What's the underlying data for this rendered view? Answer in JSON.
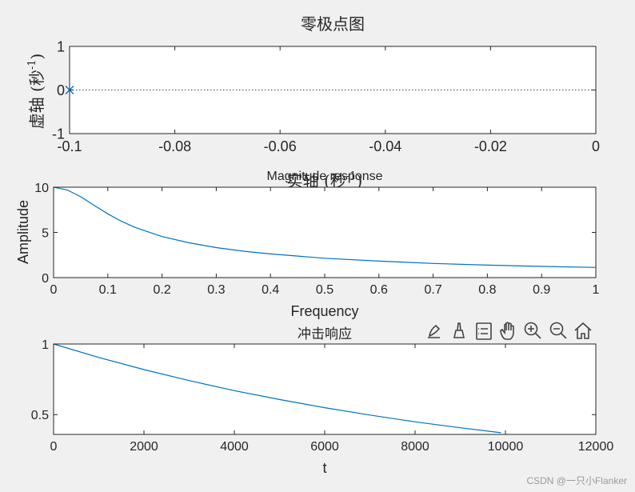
{
  "chart_data": [
    {
      "type": "scatter",
      "title": "零极点图",
      "xlabel": "实轴 (秒",
      "xlabel_sup": "-1",
      "xlabel_close": ")",
      "ylabel": "虚轴 (秒",
      "ylabel_sup": "-1",
      "ylabel_close": ")",
      "xlim": [
        -0.1,
        0
      ],
      "ylim": [
        -1,
        1
      ],
      "xticks": [
        -0.1,
        -0.08,
        -0.06,
        -0.04,
        -0.02,
        0
      ],
      "xtick_labels": [
        "-0.1",
        "-0.08",
        "-0.06",
        "-0.04",
        "-0.02",
        "0"
      ],
      "yticks": [
        -1,
        0,
        1
      ],
      "ytick_labels": [
        "-1",
        "0",
        "1"
      ],
      "poles": [
        {
          "x": -0.1,
          "y": 0
        }
      ],
      "zero_line": {
        "y": 0,
        "style": "dotted"
      },
      "marker": "x",
      "color": "#0072bd"
    },
    {
      "type": "line",
      "title": "Magnitude response",
      "xlabel": "Frequency",
      "ylabel": "Amplitude",
      "xlim": [
        0,
        1
      ],
      "ylim": [
        0,
        10
      ],
      "xticks": [
        0,
        0.1,
        0.2,
        0.3,
        0.4,
        0.5,
        0.6,
        0.7,
        0.8,
        0.9,
        1
      ],
      "xtick_labels": [
        "0",
        "0.1",
        "0.2",
        "0.3",
        "0.4",
        "0.5",
        "0.6",
        "0.7",
        "0.8",
        "0.9",
        "1"
      ],
      "yticks": [
        0,
        5,
        10
      ],
      "ytick_labels": [
        "0",
        "5",
        "10"
      ],
      "series": [
        {
          "x": [
            0,
            0.025,
            0.05,
            0.075,
            0.1,
            0.125,
            0.15,
            0.2,
            0.25,
            0.3,
            0.35,
            0.4,
            0.5,
            0.6,
            0.7,
            0.8,
            0.9,
            1.0
          ],
          "values": [
            10,
            9.7,
            8.95,
            7.99,
            7.05,
            6.23,
            5.56,
            4.54,
            3.85,
            3.32,
            2.92,
            2.62,
            2.14,
            1.82,
            1.57,
            1.38,
            1.24,
            1.12
          ]
        }
      ],
      "color": "#0072bd"
    },
    {
      "type": "line",
      "title": "冲击响应",
      "xlabel": "t",
      "ylabel": "",
      "xlim": [
        0,
        12000
      ],
      "ylim": [
        0.36,
        1
      ],
      "xticks": [
        0,
        2000,
        4000,
        6000,
        8000,
        10000,
        12000
      ],
      "xtick_labels": [
        "0",
        "2000",
        "4000",
        "6000",
        "8000",
        "10000",
        "12000"
      ],
      "yticks": [
        0.5,
        1
      ],
      "ytick_labels": [
        "0.5",
        "1"
      ],
      "series": [
        {
          "x": [
            0,
            1000,
            2000,
            3000,
            4000,
            5000,
            6000,
            7000,
            8000,
            9000,
            9900
          ],
          "values": [
            1.0,
            0.905,
            0.819,
            0.741,
            0.67,
            0.607,
            0.549,
            0.497,
            0.449,
            0.407,
            0.372
          ]
        }
      ],
      "color": "#0072bd"
    }
  ],
  "toolbar": {
    "icons": [
      "edit-brush-icon",
      "data-cursor-icon",
      "legend-icon",
      "pan-hand-icon",
      "zoom-in-icon",
      "zoom-out-icon",
      "home-icon"
    ]
  },
  "watermark": "CSDN @一只小Flanker"
}
